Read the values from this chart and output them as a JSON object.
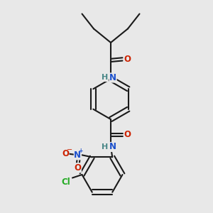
{
  "bg_color": "#e8e8e8",
  "bond_color": "#1a1a1a",
  "bond_width": 1.5,
  "atom_colors": {
    "N": "#1a4fcc",
    "O": "#cc2200",
    "Cl": "#22aa22",
    "H_color": "#4a8888",
    "C": "#1a1a1a"
  },
  "font_size": 8.5
}
